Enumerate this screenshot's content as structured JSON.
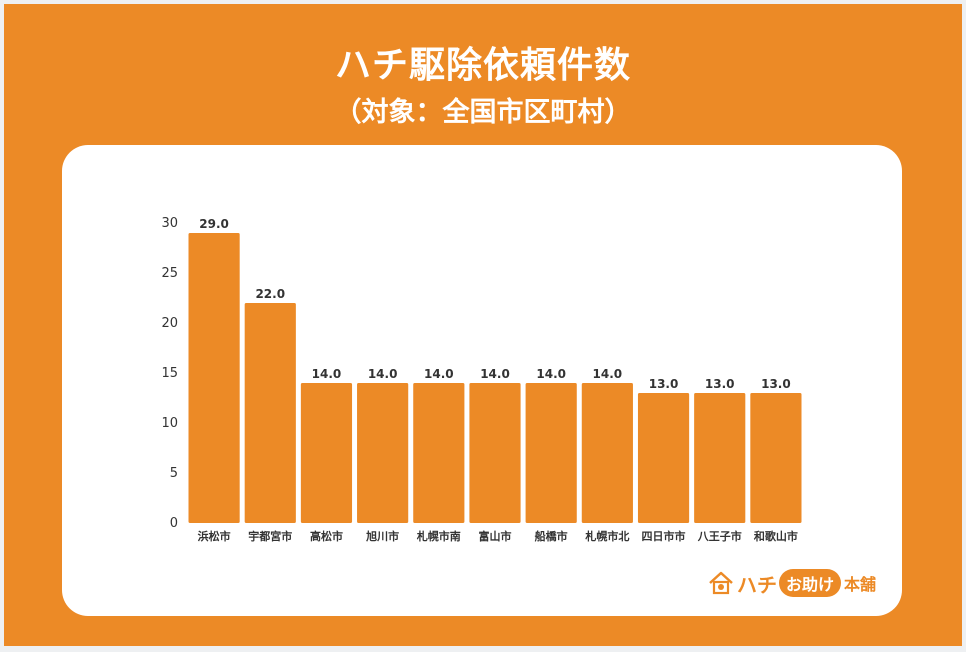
{
  "title": "ハチ駆除依頼件数",
  "subtitle": "（対象：全国市区町村）",
  "logo": {
    "text_main": "ハチ",
    "text_pill": "お助け",
    "text_tail": "本舗"
  },
  "colors": {
    "background": "#ec8a26",
    "bar": "#ec8a26",
    "card": "#ffffff"
  },
  "chart_data": {
    "type": "bar",
    "categories": [
      "浜松市",
      "宇都宮市",
      "高松市",
      "旭川市",
      "札幌市南",
      "富山市",
      "船橋市",
      "札幌市北",
      "四日市市",
      "八王子市",
      "和歌山市"
    ],
    "values": [
      29.0,
      22.0,
      14.0,
      14.0,
      14.0,
      14.0,
      14.0,
      14.0,
      13.0,
      13.0,
      13.0
    ],
    "data_labels": [
      "29.0",
      "22.0",
      "14.0",
      "14.0",
      "14.0",
      "14.0",
      "14.0",
      "14.0",
      "13.0",
      "13.0",
      "13.0"
    ],
    "yticks": [
      "0",
      "5",
      "10",
      "15",
      "20",
      "25",
      "30"
    ],
    "ylim": [
      0,
      30
    ],
    "grid": false,
    "legend": "none"
  }
}
